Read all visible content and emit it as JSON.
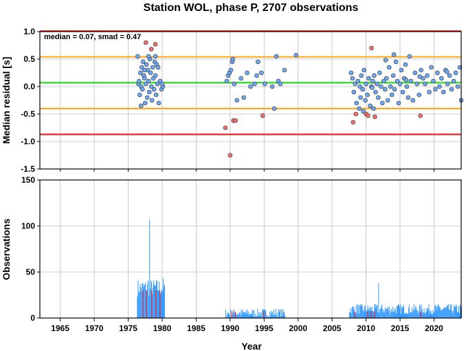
{
  "chart_data": [
    {
      "type": "scatter",
      "title": "Station WOL, phase P, 2707 observations",
      "xlabel": "",
      "ylabel": "Median residual [s]",
      "xlim": [
        1962,
        2024
      ],
      "ylim": [
        -1.5,
        1.0
      ],
      "yticks": [
        1.0,
        0.5,
        0.0,
        -0.5,
        -1.0,
        -1.5
      ],
      "ytick_labels": [
        "1.0",
        "0.5",
        "0.0",
        "-0.5",
        "-1.0",
        "-1.5"
      ],
      "grid": true,
      "annotation": "median = 0.07, smad = 0.47",
      "hlines": [
        {
          "y": 0.07,
          "color": "#22dd22"
        },
        {
          "y": 0.54,
          "color": "#ffaa22"
        },
        {
          "y": -0.4,
          "color": "#ffaa22"
        },
        {
          "y": 1.01,
          "color": "#ee2222"
        },
        {
          "y": -0.87,
          "color": "#ee2222"
        }
      ],
      "series": [
        {
          "color": "#6ea8f0",
          "points": [
            [
              1976.4,
              0.55
            ],
            [
              1976.5,
              0.05
            ],
            [
              1976.6,
              0.1
            ],
            [
              1976.7,
              -0.15
            ],
            [
              1976.8,
              0.25
            ],
            [
              1976.9,
              0.0
            ],
            [
              1977.0,
              0.35
            ],
            [
              1977.1,
              -0.05
            ],
            [
              1977.2,
              0.45
            ],
            [
              1977.3,
              0.2
            ],
            [
              1977.4,
              0.15
            ],
            [
              1977.5,
              -0.3
            ],
            [
              1977.6,
              0.05
            ],
            [
              1977.7,
              0.4
            ],
            [
              1977.8,
              -0.2
            ],
            [
              1977.9,
              0.3
            ],
            [
              1978.0,
              0.1
            ],
            [
              1978.1,
              -0.1
            ],
            [
              1978.2,
              0.5
            ],
            [
              1978.3,
              0.25
            ],
            [
              1978.4,
              0.0
            ],
            [
              1978.5,
              -0.25
            ],
            [
              1978.6,
              0.35
            ],
            [
              1978.7,
              0.15
            ],
            [
              1978.8,
              -0.05
            ],
            [
              1978.9,
              0.45
            ],
            [
              1979.0,
              0.2
            ],
            [
              1979.1,
              -0.15
            ],
            [
              1979.2,
              0.4
            ],
            [
              1979.3,
              0.05
            ],
            [
              1979.5,
              -0.3
            ],
            [
              1979.7,
              0.1
            ],
            [
              1979.9,
              -0.05
            ],
            [
              1980.1,
              0.0
            ],
            [
              1976.9,
              -0.35
            ],
            [
              1977.4,
              0.3
            ],
            [
              1978.0,
              0.55
            ],
            [
              1979.0,
              0.55
            ],
            [
              1979.4,
              0.35
            ],
            [
              1980.0,
              0.05
            ],
            [
              1989.5,
              0.1
            ],
            [
              1989.7,
              0.2
            ],
            [
              1989.9,
              0.25
            ],
            [
              1990.1,
              0.3
            ],
            [
              1990.3,
              0.45
            ],
            [
              1990.6,
              0.05
            ],
            [
              1991.0,
              -0.25
            ],
            [
              1991.6,
              0.15
            ],
            [
              1992.0,
              -0.2
            ],
            [
              1992.5,
              0.25
            ],
            [
              1993.0,
              0.0
            ],
            [
              1993.6,
              0.05
            ],
            [
              1994.1,
              0.45
            ],
            [
              1994.6,
              0.25
            ],
            [
              1995.1,
              0.05
            ],
            [
              1996.2,
              0.0
            ],
            [
              1996.5,
              -0.4
            ],
            [
              1996.8,
              0.55
            ],
            [
              1997.1,
              0.1
            ],
            [
              1997.4,
              0.05
            ],
            [
              1998.0,
              0.3
            ],
            [
              1999.7,
              0.57
            ],
            [
              1990.4,
              0.5
            ],
            [
              1993.9,
              0.2
            ],
            [
              2007.8,
              0.25
            ],
            [
              2008.0,
              0.15
            ],
            [
              2008.2,
              -0.1
            ],
            [
              2008.4,
              0.05
            ],
            [
              2008.6,
              -0.3
            ],
            [
              2008.8,
              0.1
            ],
            [
              2009.0,
              -0.4
            ],
            [
              2009.1,
              0.0
            ],
            [
              2009.2,
              -0.2
            ],
            [
              2009.3,
              0.2
            ],
            [
              2009.5,
              -0.05
            ],
            [
              2009.7,
              0.3
            ],
            [
              2009.9,
              -0.25
            ],
            [
              2010.0,
              0.05
            ],
            [
              2010.2,
              -0.15
            ],
            [
              2010.4,
              0.15
            ],
            [
              2010.6,
              -0.35
            ],
            [
              2010.8,
              0.0
            ],
            [
              2011.0,
              0.1
            ],
            [
              2011.1,
              -0.4
            ],
            [
              2011.2,
              0.2
            ],
            [
              2011.4,
              -0.1
            ],
            [
              2011.6,
              0.05
            ],
            [
              2011.8,
              -0.2
            ],
            [
              2012.0,
              0.25
            ],
            [
              2012.2,
              0.0
            ],
            [
              2012.4,
              -0.3
            ],
            [
              2012.6,
              0.1
            ],
            [
              2012.8,
              -0.05
            ],
            [
              2013.0,
              0.15
            ],
            [
              2013.2,
              -0.25
            ],
            [
              2013.4,
              0.35
            ],
            [
              2013.6,
              0.0
            ],
            [
              2013.8,
              -0.15
            ],
            [
              2014.0,
              0.2
            ],
            [
              2014.2,
              -0.05
            ],
            [
              2014.4,
              0.45
            ],
            [
              2014.6,
              0.1
            ],
            [
              2014.8,
              -0.3
            ],
            [
              2015.0,
              0.05
            ],
            [
              2015.2,
              0.3
            ],
            [
              2015.4,
              -0.1
            ],
            [
              2015.6,
              0.15
            ],
            [
              2015.8,
              0.4
            ],
            [
              2016.0,
              0.0
            ],
            [
              2016.2,
              -0.2
            ],
            [
              2016.4,
              0.55
            ],
            [
              2016.6,
              0.1
            ],
            [
              2016.9,
              -0.25
            ],
            [
              2017.2,
              0.25
            ],
            [
              2017.5,
              0.05
            ],
            [
              2017.8,
              -0.15
            ],
            [
              2018.1,
              0.3
            ],
            [
              2018.4,
              0.15
            ],
            [
              2018.7,
              0.05
            ],
            [
              2019.0,
              0.2
            ],
            [
              2019.3,
              -0.1
            ],
            [
              2019.6,
              0.35
            ],
            [
              2019.9,
              0.1
            ],
            [
              2020.2,
              -0.05
            ],
            [
              2020.5,
              0.25
            ],
            [
              2020.8,
              0.0
            ],
            [
              2021.1,
              0.15
            ],
            [
              2021.4,
              -0.1
            ],
            [
              2021.7,
              0.3
            ],
            [
              2022.0,
              0.05
            ],
            [
              2022.3,
              0.2
            ],
            [
              2022.6,
              -0.05
            ],
            [
              2022.9,
              0.1
            ],
            [
              2023.2,
              0.25
            ],
            [
              2023.5,
              0.0
            ],
            [
              2023.8,
              0.35
            ],
            [
              2024.0,
              -0.25
            ],
            [
              2014.1,
              0.58
            ],
            [
              2012.9,
              0.48
            ],
            [
              2015.9,
              0.12
            ],
            [
              2010.9,
              -0.02
            ],
            [
              2009.6,
              -0.45
            ],
            [
              2021.9,
              0.27
            ],
            [
              2017.9,
              0.18
            ]
          ]
        },
        {
          "color": "#f07070",
          "points": [
            [
              1977.6,
              0.8
            ],
            [
              1978.4,
              0.68
            ],
            [
              1979.0,
              0.77
            ],
            [
              1989.3,
              -0.75
            ],
            [
              1990.0,
              -1.25
            ],
            [
              1990.5,
              -0.62
            ],
            [
              1990.8,
              -0.62
            ],
            [
              1994.8,
              -0.53
            ],
            [
              2008.1,
              -0.65
            ],
            [
              2008.5,
              -0.5
            ],
            [
              2010.0,
              -0.5
            ],
            [
              2010.3,
              -0.53
            ],
            [
              2010.8,
              0.7
            ],
            [
              2011.3,
              -0.55
            ],
            [
              2018.0,
              -0.53
            ]
          ]
        }
      ]
    },
    {
      "type": "bar",
      "title": "",
      "xlabel": "Year",
      "ylabel": "Observations",
      "xlim": [
        1962,
        2024
      ],
      "ylim": [
        0,
        150
      ],
      "xticks": [
        1965,
        1970,
        1975,
        1980,
        1985,
        1990,
        1995,
        2000,
        2005,
        2010,
        2015,
        2020
      ],
      "xtick_labels": [
        "1965",
        "1970",
        "1975",
        "1980",
        "1985",
        "1990",
        "1995",
        "2000",
        "2005",
        "2010",
        "2015",
        "2020"
      ],
      "yticks": [
        0,
        50,
        100,
        150
      ],
      "ytick_labels": [
        "0",
        "50",
        "100",
        "150"
      ],
      "grid": true,
      "bar_color": "#3399ff",
      "highlight_color": "#ee2222",
      "segments": [
        {
          "start": 1976.3,
          "end": 1980.3,
          "base": 30,
          "amp": 12,
          "peaks": [
            [
              1978.1,
              107
            ],
            [
              1980.1,
              43
            ],
            [
              1977.9,
              41
            ]
          ]
        },
        {
          "start": 1989.3,
          "end": 1998.0,
          "base": 4,
          "amp": 6,
          "peaks": [
            [
              1990.2,
              8
            ],
            [
              1996.7,
              10
            ]
          ]
        },
        {
          "start": 2007.5,
          "end": 2024.0,
          "base": 8,
          "amp": 7,
          "peaks": [
            [
              2011.8,
              38
            ],
            [
              2008.7,
              15
            ],
            [
              2014.7,
              15
            ]
          ]
        }
      ],
      "highlights": [
        1977.1,
        1977.6,
        1978.4,
        1979.0,
        1979.6,
        1990.2,
        1990.7,
        1994.9,
        2008.3,
        2010.2,
        2010.7,
        2011.2,
        2018.0
      ]
    }
  ]
}
